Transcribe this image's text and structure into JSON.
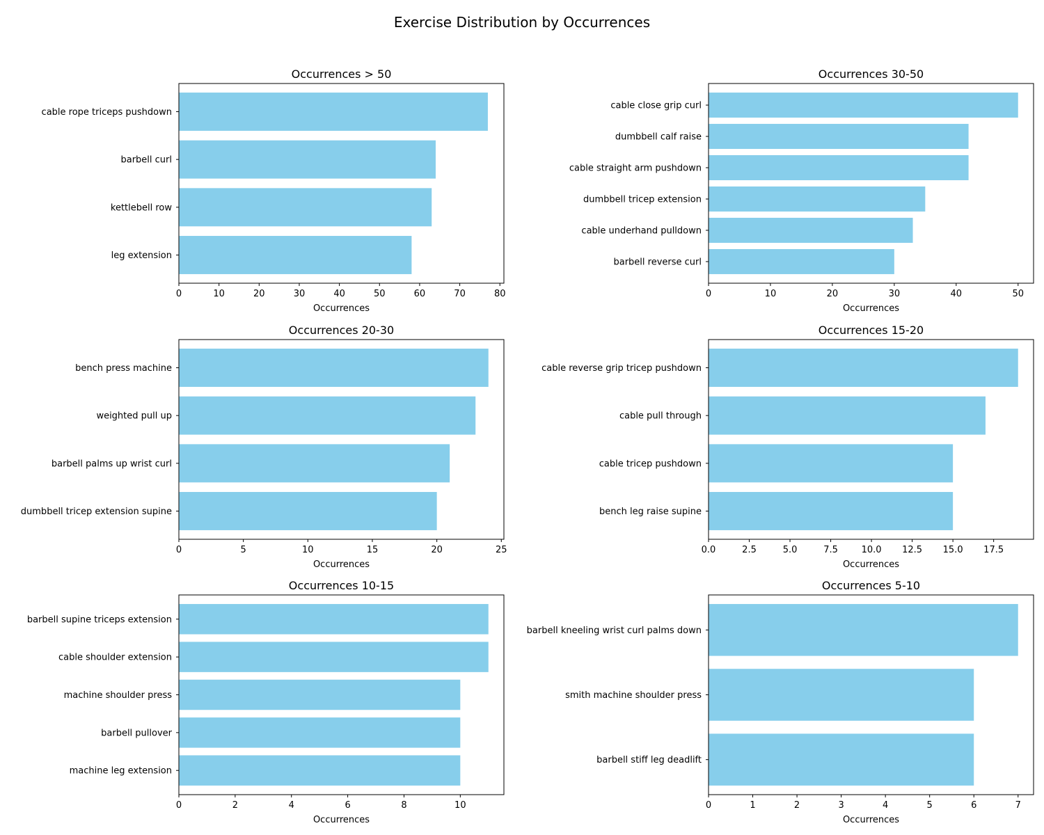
{
  "figure": {
    "title": "Exercise Distribution by Occurrences"
  },
  "colors": {
    "bar": "#87CEEB",
    "axes": "#000000",
    "background": "#ffffff"
  },
  "chart_data": [
    {
      "type": "bar",
      "orientation": "horizontal",
      "title": "Occurrences > 50",
      "xlabel": "Occurrences",
      "ylabel": "",
      "categories": [
        "cable rope triceps pushdown",
        "barbell curl",
        "kettlebell row",
        "leg extension"
      ],
      "values": [
        77,
        64,
        63,
        58
      ],
      "xlim": [
        0,
        81
      ],
      "xticks": [
        0,
        10,
        20,
        30,
        40,
        50,
        60,
        70,
        80
      ],
      "xtick_labels": [
        "0",
        "10",
        "20",
        "30",
        "40",
        "50",
        "60",
        "70",
        "80"
      ],
      "grid": false
    },
    {
      "type": "bar",
      "orientation": "horizontal",
      "title": "Occurrences 30-50",
      "xlabel": "Occurrences",
      "ylabel": "",
      "categories": [
        "cable close grip curl",
        "dumbbell calf raise",
        "cable straight arm pushdown",
        "dumbbell tricep extension",
        "cable underhand pulldown",
        "barbell reverse curl"
      ],
      "values": [
        50,
        42,
        42,
        35,
        33,
        30
      ],
      "xlim": [
        0,
        52.5
      ],
      "xticks": [
        0,
        10,
        20,
        30,
        40,
        50
      ],
      "xtick_labels": [
        "0",
        "10",
        "20",
        "30",
        "40",
        "50"
      ],
      "grid": false
    },
    {
      "type": "bar",
      "orientation": "horizontal",
      "title": "Occurrences 20-30",
      "xlabel": "Occurrences",
      "ylabel": "",
      "categories": [
        "bench press machine",
        "weighted pull up",
        "barbell palms up wrist curl",
        "dumbbell tricep extension supine"
      ],
      "values": [
        24,
        23,
        21,
        20
      ],
      "xlim": [
        0,
        25.2
      ],
      "xticks": [
        0,
        5,
        10,
        15,
        20,
        25
      ],
      "xtick_labels": [
        "0",
        "5",
        "10",
        "15",
        "20",
        "25"
      ],
      "grid": false
    },
    {
      "type": "bar",
      "orientation": "horizontal",
      "title": "Occurrences 15-20",
      "xlabel": "Occurrences",
      "ylabel": "",
      "categories": [
        "cable reverse grip tricep pushdown",
        "cable pull through",
        "cable tricep pushdown",
        "bench leg raise supine"
      ],
      "values": [
        19,
        17,
        15,
        15
      ],
      "xlim": [
        0,
        19.95
      ],
      "xticks": [
        0,
        2.5,
        5,
        7.5,
        10,
        12.5,
        15,
        17.5
      ],
      "xtick_labels": [
        "0.0",
        "2.5",
        "5.0",
        "7.5",
        "10.0",
        "12.5",
        "15.0",
        "17.5"
      ],
      "grid": false
    },
    {
      "type": "bar",
      "orientation": "horizontal",
      "title": "Occurrences 10-15",
      "xlabel": "Occurrences",
      "ylabel": "",
      "categories": [
        "barbell supine triceps extension",
        "cable shoulder extension",
        "machine shoulder press",
        "barbell pullover",
        "machine leg extension"
      ],
      "values": [
        11,
        11,
        10,
        10,
        10
      ],
      "xlim": [
        0,
        11.55
      ],
      "xticks": [
        0,
        2,
        4,
        6,
        8,
        10
      ],
      "xtick_labels": [
        "0",
        "2",
        "4",
        "6",
        "8",
        "10"
      ],
      "grid": false
    },
    {
      "type": "bar",
      "orientation": "horizontal",
      "title": "Occurrences 5-10",
      "xlabel": "Occurrences",
      "ylabel": "",
      "categories": [
        "barbell kneeling wrist curl palms down",
        "smith machine shoulder press",
        "barbell stiff leg deadlift"
      ],
      "values": [
        7,
        6,
        6
      ],
      "xlim": [
        0,
        7.35
      ],
      "xticks": [
        0,
        1,
        2,
        3,
        4,
        5,
        6,
        7
      ],
      "xtick_labels": [
        "0",
        "1",
        "2",
        "3",
        "4",
        "5",
        "6",
        "7"
      ],
      "grid": false
    }
  ]
}
